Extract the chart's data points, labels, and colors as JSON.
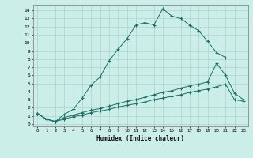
{
  "xlabel": "Humidex (Indice chaleur)",
  "bg_color": "#cceee8",
  "grid_color": "#aad4ce",
  "line_color": "#1a6e64",
  "xlim": [
    -0.5,
    23.5
  ],
  "ylim": [
    -0.3,
    14.7
  ],
  "xticks": [
    0,
    1,
    2,
    3,
    4,
    5,
    6,
    7,
    8,
    9,
    10,
    11,
    12,
    13,
    14,
    15,
    16,
    17,
    18,
    19,
    20,
    21,
    22,
    23
  ],
  "yticks": [
    0,
    1,
    2,
    3,
    4,
    5,
    6,
    7,
    8,
    9,
    10,
    11,
    12,
    13,
    14
  ],
  "line1_x": [
    0,
    1,
    2,
    3,
    4,
    5,
    6,
    7,
    8,
    9,
    10,
    11,
    12,
    13,
    14,
    15,
    16,
    17,
    18,
    19,
    20,
    21
  ],
  "line1_y": [
    1.3,
    0.6,
    0.3,
    1.2,
    1.8,
    3.2,
    4.8,
    5.8,
    7.8,
    9.2,
    10.5,
    12.2,
    12.5,
    12.2,
    14.2,
    13.3,
    13.0,
    12.2,
    11.5,
    10.2,
    8.8,
    8.2
  ],
  "line2_x": [
    0,
    1,
    2,
    3,
    4,
    5,
    6,
    7,
    8,
    9,
    10,
    11,
    12,
    13,
    14,
    15,
    16,
    17,
    18,
    19,
    20,
    21,
    22,
    23
  ],
  "line2_y": [
    1.3,
    0.6,
    0.3,
    0.8,
    1.1,
    1.4,
    1.7,
    1.9,
    2.2,
    2.5,
    2.8,
    3.0,
    3.3,
    3.6,
    3.9,
    4.1,
    4.4,
    4.7,
    4.9,
    5.2,
    7.5,
    6.0,
    3.8,
    3.0
  ],
  "line3_x": [
    0,
    1,
    2,
    3,
    4,
    5,
    6,
    7,
    8,
    9,
    10,
    11,
    12,
    13,
    14,
    15,
    16,
    17,
    18,
    19,
    20,
    21,
    22,
    23
  ],
  "line3_y": [
    1.3,
    0.6,
    0.3,
    0.6,
    0.9,
    1.1,
    1.4,
    1.6,
    1.8,
    2.1,
    2.3,
    2.5,
    2.7,
    3.0,
    3.2,
    3.4,
    3.6,
    3.9,
    4.1,
    4.3,
    4.6,
    4.9,
    3.0,
    2.8
  ]
}
